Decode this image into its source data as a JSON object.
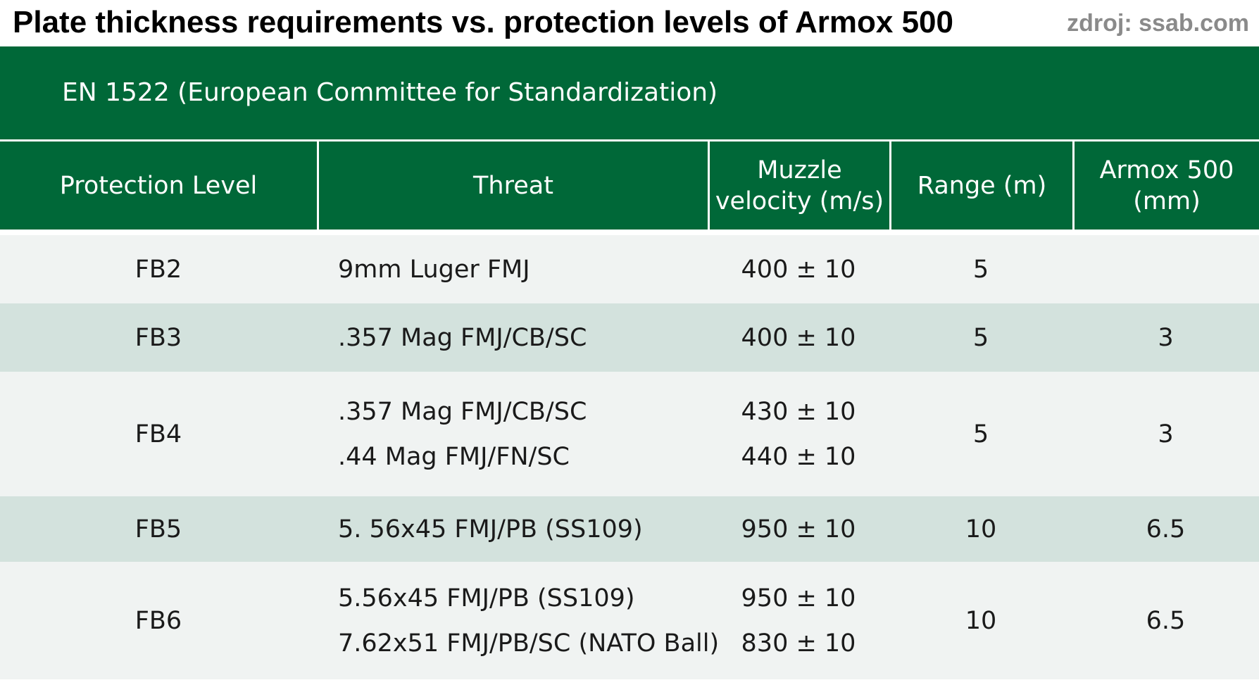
{
  "header": {
    "title": "Plate thickness requirements vs. protection levels of Armox 500",
    "source": "zdroj: ssab.com"
  },
  "standard": {
    "label": "EN 1522 (European Committee for Standardization)"
  },
  "table": {
    "columns": {
      "protection_level": "Protection Level",
      "threat": "Threat",
      "muzzle_velocity_line1": "Muzzle",
      "muzzle_velocity_line2": "velocity (m/s)",
      "range": "Range (m)",
      "armox_line1": "Armox 500",
      "armox_line2": "(mm)"
    },
    "rows": [
      {
        "level": "FB2",
        "threats": [
          "9mm Luger FMJ"
        ],
        "velocities": [
          "400 ± 10"
        ],
        "range": "5",
        "armox": ""
      },
      {
        "level": "FB3",
        "threats": [
          ".357 Mag FMJ/CB/SC"
        ],
        "velocities": [
          "400 ± 10"
        ],
        "range": "5",
        "armox": "3"
      },
      {
        "level": "FB4",
        "threats": [
          ".357 Mag FMJ/CB/SC",
          ".44 Mag FMJ/FN/SC"
        ],
        "velocities": [
          "430 ± 10",
          "440 ± 10"
        ],
        "range": "5",
        "armox": "3"
      },
      {
        "level": "FB5",
        "threats": [
          "5. 56x45 FMJ/PB (SS109)"
        ],
        "velocities": [
          "950 ± 10"
        ],
        "range": "10",
        "armox": "6.5"
      },
      {
        "level": "FB6",
        "threats": [
          "5.56x45 FMJ/PB (SS109)",
          "7.62x51 FMJ/PB/SC (NATO Ball)"
        ],
        "velocities": [
          "950 ± 10",
          "830 ± 10"
        ],
        "range": "10",
        "armox": "6.5"
      }
    ]
  },
  "colors": {
    "header_green": "#006838",
    "row_light": "#f0f3f2",
    "row_dark": "#d3e2dd",
    "source_gray": "#8a8a8a"
  }
}
